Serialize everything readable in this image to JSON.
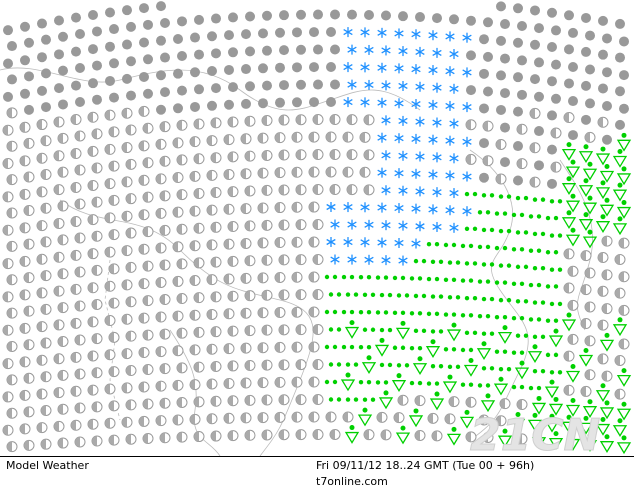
{
  "footer": {
    "product": "Model Weather",
    "datetime": "Fri 09/11/12 18..24 GMT (Tue 00 + 96h)",
    "site": "t7online.com"
  },
  "watermark": "21CN"
}
